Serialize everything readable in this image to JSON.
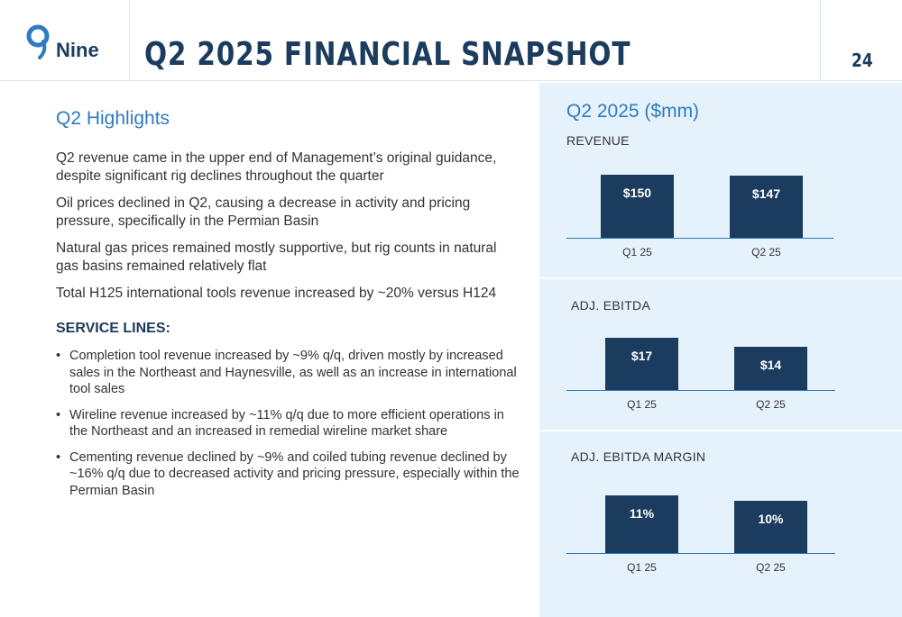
{
  "header": {
    "logo_text": "Nine",
    "title": "Q2 2025 FINANCIAL SNAPSHOT",
    "page_number": "24"
  },
  "highlights": {
    "heading": "Q2 Highlights",
    "paragraphs": [
      "Q2 revenue came in the upper end of Management’s original guidance, despite significant rig declines throughout the quarter",
      "Oil prices declined in Q2, causing a decrease in activity and pricing pressure, specifically in the Permian Basin",
      "Natural gas prices remained mostly supportive, but rig counts in natural gas basins remained relatively flat",
      "Total H125 international tools revenue increased by ~20% versus H124"
    ],
    "service_lines_title": "SERVICE LINES:",
    "service_lines": [
      "Completion tool revenue increased by ~9% q/q, driven mostly by increased sales in the Northeast and Haynesville, as well as an increase in international tool sales",
      "Wireline revenue increased by ~11% q/q due to more efficient operations in the Northeast and an increased in remedial wireline market share",
      "Cementing revenue declined by ~9% and coiled tubing revenue declined by ~16% q/q due to decreased activity and pricing pressure, especially within the Permian Basin"
    ]
  },
  "summary": {
    "heading": "Q2 2025 ($mm)"
  },
  "colors": {
    "accent": "#2e7bbf",
    "bar": "#1b3c5e",
    "panel": "#e5f1fb"
  },
  "chart_data": [
    {
      "type": "bar",
      "title": "REVENUE",
      "categories": [
        "Q1 25",
        "Q2 25"
      ],
      "values": [
        150,
        147
      ],
      "labels": [
        "$150",
        "$147"
      ]
    },
    {
      "type": "bar",
      "title": "ADJ. EBITDA",
      "categories": [
        "Q1 25",
        "Q2 25"
      ],
      "values": [
        17,
        14
      ],
      "labels": [
        "$17",
        "$14"
      ]
    },
    {
      "type": "bar",
      "title": "ADJ. EBITDA MARGIN",
      "categories": [
        "Q1 25",
        "Q2 25"
      ],
      "values": [
        11,
        10
      ],
      "labels": [
        "11%",
        "10%"
      ]
    }
  ]
}
